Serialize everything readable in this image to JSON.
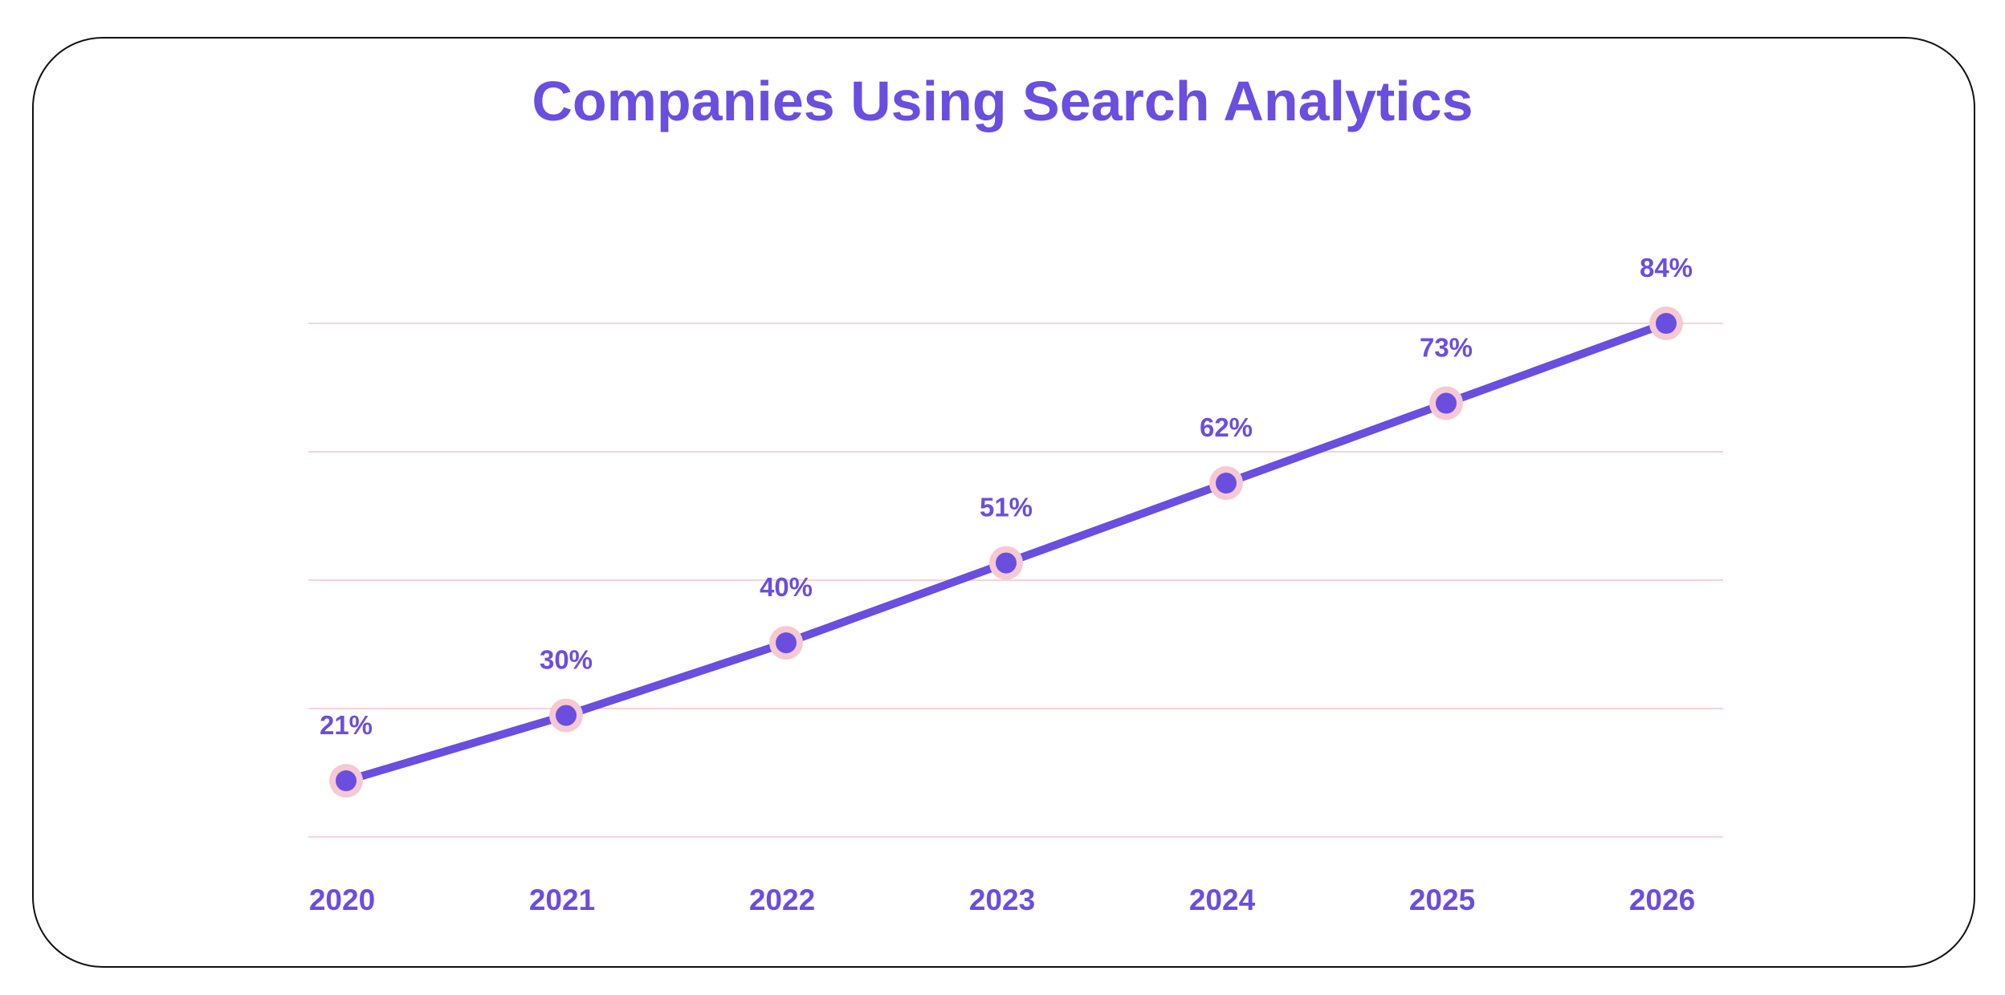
{
  "colors": {
    "accent": "#6a4ee0",
    "marker_halo": "#f5c9d3",
    "grid": "#f7d3db",
    "border": "#111111"
  },
  "chart_data": {
    "type": "line",
    "title": "Companies Using Search Analytics",
    "categories": [
      "2020",
      "2021",
      "2022",
      "2023",
      "2024",
      "2025",
      "2026"
    ],
    "values": [
      21,
      30,
      40,
      51,
      62,
      73,
      84
    ],
    "data_labels": [
      "21%",
      "30%",
      "40%",
      "51%",
      "62%",
      "73%",
      "84%"
    ],
    "ylim": [
      0,
      100
    ],
    "grid": true,
    "legend": "none",
    "y_axis_labels_shown": false
  }
}
